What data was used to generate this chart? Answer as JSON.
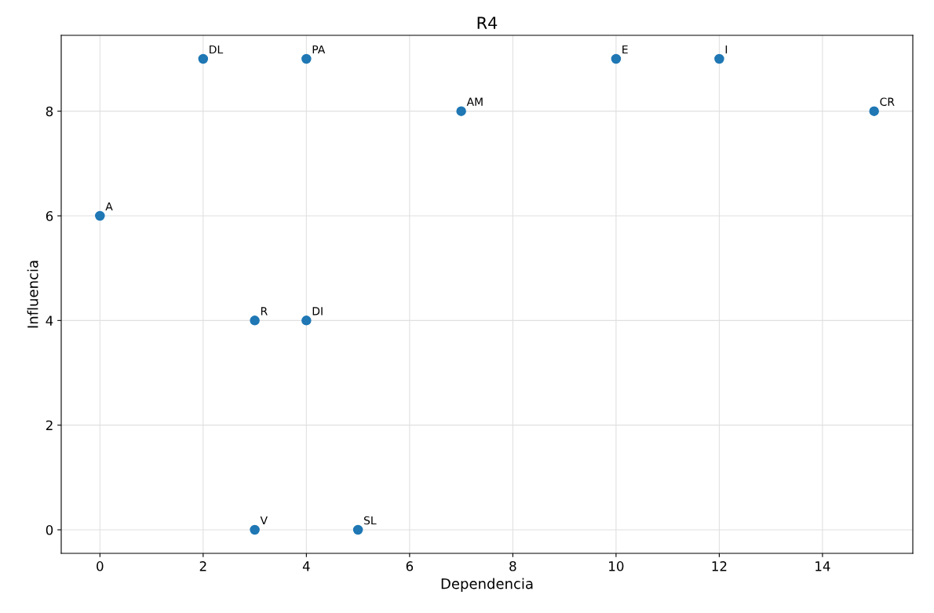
{
  "chart_data": {
    "type": "scatter",
    "title": "R4",
    "xlabel": "Dependencia",
    "ylabel": "Influencia",
    "x": [
      2,
      4,
      7,
      10,
      12,
      15,
      0,
      3,
      4,
      3,
      5
    ],
    "series": [
      {
        "color": "#1f77b4",
        "values": [
          9,
          9,
          8,
          9,
          9,
          8,
          6,
          4,
          4,
          0,
          0
        ]
      }
    ],
    "annotations": [
      {
        "text": "DL",
        "x": 2,
        "y": 9
      },
      {
        "text": "PA",
        "x": 4,
        "y": 9
      },
      {
        "text": "AM",
        "x": 7,
        "y": 8
      },
      {
        "text": "E",
        "x": 10,
        "y": 9
      },
      {
        "text": "I",
        "x": 12,
        "y": 9
      },
      {
        "text": "CR",
        "x": 15,
        "y": 8
      },
      {
        "text": "A",
        "x": 0,
        "y": 6
      },
      {
        "text": "R",
        "x": 3,
        "y": 4
      },
      {
        "text": "DI",
        "x": 4,
        "y": 4
      },
      {
        "text": "V",
        "x": 3,
        "y": 0
      },
      {
        "text": "SL",
        "x": 5,
        "y": 0
      }
    ],
    "xlim": [
      -0.75,
      15.75
    ],
    "ylim": [
      -0.45,
      9.45
    ],
    "xticks": [
      0,
      2,
      4,
      6,
      8,
      10,
      12,
      14
    ],
    "yticks": [
      0,
      2,
      4,
      6,
      8
    ],
    "grid": true,
    "marker": "circle"
  }
}
